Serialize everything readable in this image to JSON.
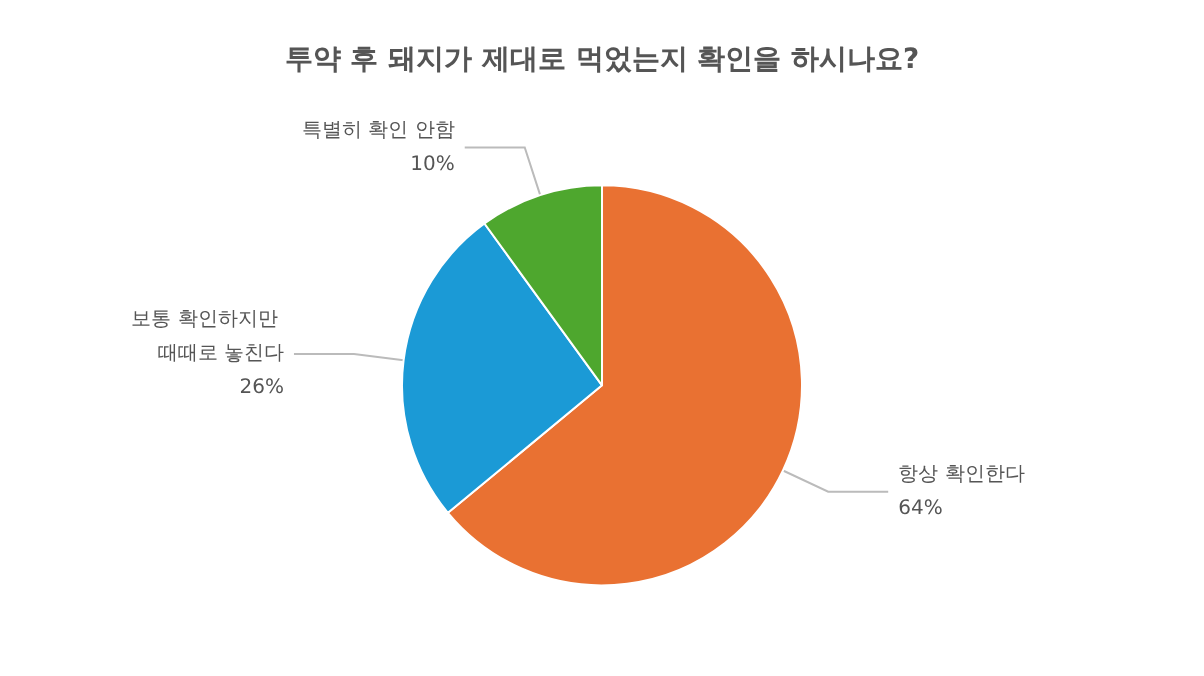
{
  "chart_data": {
    "type": "pie",
    "title": "투약 후 돼지가 제대로 먹었는지 확인을 하시나요?",
    "categories": [
      "항상 확인한다",
      "보통 확인하지만 때때로 놓친다",
      "특별히 확인 안함"
    ],
    "values": [
      64,
      26,
      10
    ],
    "value_labels": [
      "64%",
      "26%",
      "10%"
    ],
    "colors": [
      "#e97132",
      "#1b9ad6",
      "#4ea72e"
    ],
    "legend": false
  }
}
